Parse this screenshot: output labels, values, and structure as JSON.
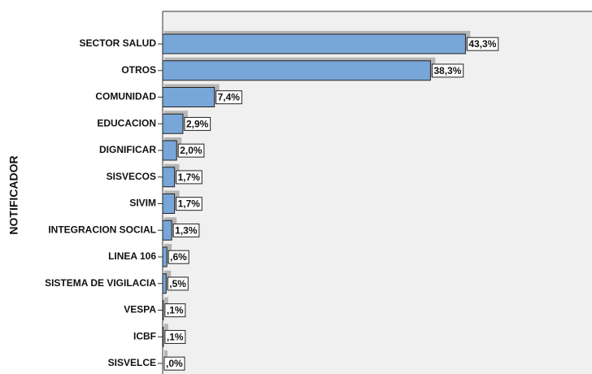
{
  "chart_data": {
    "type": "bar",
    "orientation": "horizontal",
    "y_axis_label": "NOTIFICADOR",
    "categories": [
      "SECTOR SALUD",
      "OTROS",
      "COMUNIDAD",
      "EDUCACION",
      "DIGNIFICAR",
      "SISVECOS",
      "SIVIM",
      "INTEGRACION SOCIAL",
      "LINEA 106",
      "SISTEMA DE VIGILACIA",
      "VESPA",
      "ICBF",
      "SISVELCE"
    ],
    "values": [
      43.3,
      38.3,
      7.4,
      2.9,
      2.0,
      1.7,
      1.7,
      1.3,
      0.6,
      0.5,
      0.1,
      0.1,
      0.0
    ],
    "value_labels": [
      "43,3%",
      "38,3%",
      "7,4%",
      "2,9%",
      "2,0%",
      "1,7%",
      "1,7%",
      "1,3%",
      ",6%",
      ",5%",
      ",1%",
      ",1%",
      ",0%"
    ],
    "color": "#78a6d8"
  }
}
